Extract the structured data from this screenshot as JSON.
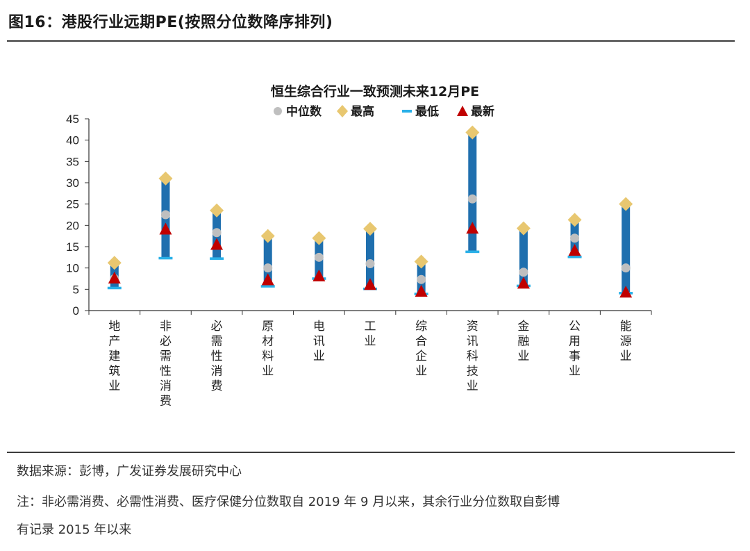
{
  "figure_title": "图16：港股行业远期PE(按照分位数降序排列)",
  "source_text": "数据来源：彭博，广发证券发展研究中心",
  "note_line1": "注：非必需消费、必需性消费、医疗保健分位数取自 2019 年 9 月以来，其余行业分位数取自彭博",
  "note_line2": "有记录 2015 年以来",
  "colors": {
    "bar": "#1f6fae",
    "median": "#bfbfbf",
    "high": "#e8c770",
    "low": "#29b0e8",
    "latest": "#c00000",
    "axis": "#333333"
  },
  "chart_data": {
    "type": "range-marker",
    "title": "恒生综合行业一致预测未来12月PE",
    "legend": [
      "中位数",
      "最高",
      "最低",
      "最新"
    ],
    "legend_position": "top",
    "categories": [
      "地产建筑业",
      "非必需性消费",
      "必需性消费",
      "原材料业",
      "电讯业",
      "工业",
      "综合企业",
      "资讯科技业",
      "金融业",
      "公用事业",
      "能源业"
    ],
    "series": [
      {
        "name": "中位数",
        "values": [
          7.5,
          22.5,
          18.3,
          10.0,
          12.5,
          11.0,
          7.3,
          26.2,
          9.0,
          17.0,
          10.0
        ]
      },
      {
        "name": "最高",
        "values": [
          11.2,
          31.0,
          23.5,
          17.5,
          17.0,
          19.2,
          11.5,
          41.8,
          19.3,
          21.3,
          25.0
        ]
      },
      {
        "name": "最低",
        "values": [
          5.3,
          12.3,
          12.2,
          5.7,
          7.5,
          5.1,
          3.9,
          13.8,
          5.8,
          12.6,
          4.1
        ]
      },
      {
        "name": "最新",
        "values": [
          7.5,
          19.0,
          15.4,
          7.1,
          8.0,
          6.0,
          4.4,
          19.2,
          6.3,
          14.0,
          4.2
        ]
      }
    ],
    "yticks": [
      0,
      5,
      10,
      15,
      20,
      25,
      30,
      35,
      40,
      45
    ],
    "ylim": [
      0,
      45
    ],
    "grid": false
  }
}
